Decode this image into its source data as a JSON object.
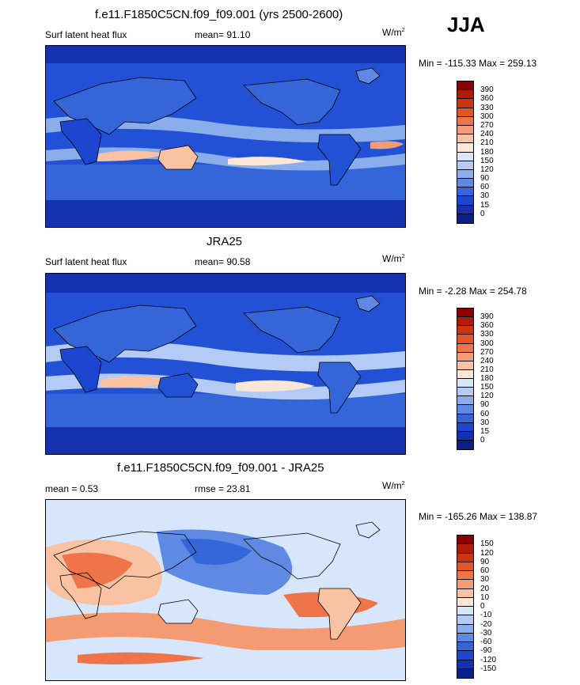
{
  "season": "JJA",
  "unit": "W/m",
  "unit_sup": "2",
  "panels": [
    {
      "title": "f.e11.F1850C5CN.f09_f09.001 (yrs 2500-2600)",
      "field": "Surf latent heat flux",
      "mean_label": "mean=  91.10",
      "minmax": "Min = -115.33 Max = 259.13",
      "levels": [
        "390",
        "360",
        "330",
        "300",
        "270",
        "240",
        "210",
        "180",
        "150",
        "120",
        "90",
        "60",
        "30",
        "15",
        "0"
      ],
      "colors": [
        "#8b0000",
        "#b01a08",
        "#d2330f",
        "#e4542a",
        "#ef7449",
        "#f59b74",
        "#f9c2a2",
        "#fce6d8",
        "#d8e6fb",
        "#b4ccf5",
        "#8aaeec",
        "#5f8ae3",
        "#3466da",
        "#1c46cf",
        "#1432b0",
        "#0b1f86"
      ]
    },
    {
      "title": "JRA25",
      "field": "Surf latent heat flux",
      "mean_label": "mean=  90.58",
      "minmax": "Min =  -2.28 Max = 254.78",
      "levels": [
        "390",
        "360",
        "330",
        "300",
        "270",
        "240",
        "210",
        "180",
        "150",
        "120",
        "90",
        "60",
        "30",
        "15",
        "0"
      ],
      "colors": [
        "#8b0000",
        "#b01a08",
        "#d2330f",
        "#e4542a",
        "#ef7449",
        "#f59b74",
        "#f9c2a2",
        "#fce6d8",
        "#d8e6fb",
        "#b4ccf5",
        "#8aaeec",
        "#5f8ae3",
        "#3466da",
        "#1c46cf",
        "#1432b0",
        "#0b1f86"
      ]
    },
    {
      "title": "f.e11.F1850C5CN.f09_f09.001 - JRA25",
      "mean_label": "mean =   0.53",
      "rmse_label": "rmse =  23.81",
      "minmax": "Min = -165.26 Max = 138.87",
      "levels": [
        "150",
        "120",
        "90",
        "60",
        "30",
        "20",
        "10",
        "0",
        "-10",
        "-20",
        "-30",
        "-60",
        "-90",
        "-120",
        "-150"
      ],
      "colors": [
        "#8b0000",
        "#b01a08",
        "#d2330f",
        "#e4542a",
        "#ef7449",
        "#f59b74",
        "#f9c2a2",
        "#fce6d8",
        "#d8e6fb",
        "#b4ccf5",
        "#8aaeec",
        "#5f8ae3",
        "#3466da",
        "#1c46cf",
        "#1432b0",
        "#0b1f86"
      ]
    }
  ]
}
